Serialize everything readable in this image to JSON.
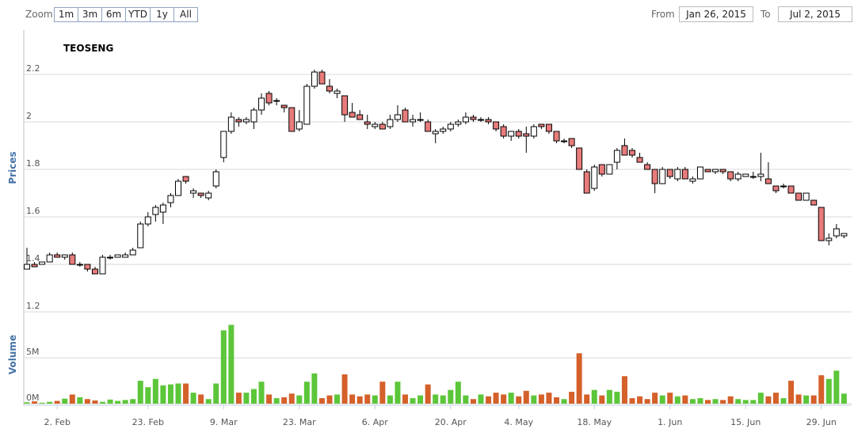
{
  "header": {
    "zoom_label": "Zoom",
    "buttons": [
      "1m",
      "3m",
      "6m",
      "YTD",
      "1y",
      "All"
    ],
    "from_label": "From",
    "from": "Jan 26, 2015",
    "to_label": "To",
    "to": "Jul 2, 2015"
  },
  "chart_data": {
    "type": "candlestick",
    "title": "TEOSENG",
    "y_label": "Prices",
    "volume_label": "Volume",
    "up_color": "#ffffff",
    "down_color": "#e87b7b",
    "volume_up_color": "#5cc63a",
    "volume_down_color": "#d4602a",
    "grid": true,
    "ylim": [
      1.2,
      2.38
    ],
    "yticks": [
      1.2,
      1.4,
      1.6,
      1.8,
      2,
      2.2
    ],
    "volume_ylim": [
      0,
      9500000
    ],
    "volume_yticks": [
      {
        "value": 0,
        "label": "0M"
      },
      {
        "value": 5000000,
        "label": "5M"
      }
    ],
    "xticks": [
      {
        "value": "2015-02-02",
        "label": "2. Feb"
      },
      {
        "value": "2015-02-23",
        "label": "23. Feb"
      },
      {
        "value": "2015-03-09",
        "label": "9. Mar"
      },
      {
        "value": "2015-03-23",
        "label": "23. Mar"
      },
      {
        "value": "2015-04-06",
        "label": "6. Apr"
      },
      {
        "value": "2015-04-20",
        "label": "20. Apr"
      },
      {
        "value": "2015-05-04",
        "label": "4. May"
      },
      {
        "value": "2015-05-18",
        "label": "18. May"
      },
      {
        "value": "2015-06-01",
        "label": "1. Jun"
      },
      {
        "value": "2015-06-15",
        "label": "15. Jun"
      },
      {
        "value": "2015-06-29",
        "label": "29. Jun"
      }
    ],
    "x": [
      "2015-01-27",
      "2015-01-28",
      "2015-01-29",
      "2015-01-30",
      "2015-02-02",
      "2015-02-04",
      "2015-02-05",
      "2015-02-06",
      "2015-02-09",
      "2015-02-10",
      "2015-02-11",
      "2015-02-12",
      "2015-02-13",
      "2015-02-16",
      "2015-02-17",
      "2015-02-18",
      "2015-02-23",
      "2015-02-24",
      "2015-02-25",
      "2015-02-26",
      "2015-02-27",
      "2015-03-02",
      "2015-03-03",
      "2015-03-04",
      "2015-03-05",
      "2015-03-06",
      "2015-03-09",
      "2015-03-10",
      "2015-03-11",
      "2015-03-12",
      "2015-03-13",
      "2015-03-16",
      "2015-03-17",
      "2015-03-18",
      "2015-03-19",
      "2015-03-20",
      "2015-03-23",
      "2015-03-24",
      "2015-03-25",
      "2015-03-26",
      "2015-03-27",
      "2015-03-30",
      "2015-03-31",
      "2015-04-01",
      "2015-04-02",
      "2015-04-03",
      "2015-04-06",
      "2015-04-07",
      "2015-04-08",
      "2015-04-09",
      "2015-04-10",
      "2015-04-13",
      "2015-04-14",
      "2015-04-15",
      "2015-04-16",
      "2015-04-17",
      "2015-04-20",
      "2015-04-21",
      "2015-04-22",
      "2015-04-23",
      "2015-04-24",
      "2015-04-27",
      "2015-04-28",
      "2015-04-29",
      "2015-04-30",
      "2015-05-04",
      "2015-05-05",
      "2015-05-06",
      "2015-05-07",
      "2015-05-08",
      "2015-05-11",
      "2015-05-12",
      "2015-05-13",
      "2015-05-14",
      "2015-05-15",
      "2015-05-18",
      "2015-05-19",
      "2015-05-20",
      "2015-05-21",
      "2015-05-22",
      "2015-05-25",
      "2015-05-26",
      "2015-05-27",
      "2015-05-28",
      "2015-05-29",
      "2015-06-01",
      "2015-06-02",
      "2015-06-03",
      "2015-06-04",
      "2015-06-05",
      "2015-06-08",
      "2015-06-09",
      "2015-06-10",
      "2015-06-11",
      "2015-06-12",
      "2015-06-15",
      "2015-06-16",
      "2015-06-17",
      "2015-06-18",
      "2015-06-19",
      "2015-06-22",
      "2015-06-23",
      "2015-06-24",
      "2015-06-25",
      "2015-06-26",
      "2015-06-29",
      "2015-06-30",
      "2015-07-01",
      "2015-07-02"
    ],
    "ohlc": [
      [
        1.38,
        1.47,
        1.38,
        1.4
      ],
      [
        1.4,
        1.41,
        1.39,
        1.39
      ],
      [
        1.4,
        1.41,
        1.4,
        1.41
      ],
      [
        1.41,
        1.45,
        1.41,
        1.44
      ],
      [
        1.44,
        1.45,
        1.43,
        1.43
      ],
      [
        1.43,
        1.44,
        1.42,
        1.44
      ],
      [
        1.44,
        1.45,
        1.4,
        1.4
      ],
      [
        1.4,
        1.41,
        1.39,
        1.4
      ],
      [
        1.4,
        1.4,
        1.37,
        1.38
      ],
      [
        1.38,
        1.39,
        1.36,
        1.36
      ],
      [
        1.36,
        1.44,
        1.36,
        1.43
      ],
      [
        1.43,
        1.44,
        1.42,
        1.43
      ],
      [
        1.43,
        1.44,
        1.43,
        1.44
      ],
      [
        1.43,
        1.45,
        1.43,
        1.44
      ],
      [
        1.44,
        1.47,
        1.44,
        1.46
      ],
      [
        1.47,
        1.58,
        1.47,
        1.57
      ],
      [
        1.57,
        1.62,
        1.56,
        1.6
      ],
      [
        1.61,
        1.65,
        1.58,
        1.64
      ],
      [
        1.62,
        1.66,
        1.57,
        1.65
      ],
      [
        1.66,
        1.7,
        1.64,
        1.69
      ],
      [
        1.69,
        1.76,
        1.69,
        1.75
      ],
      [
        1.77,
        1.77,
        1.74,
        1.75
      ],
      [
        1.7,
        1.72,
        1.68,
        1.71
      ],
      [
        1.7,
        1.7,
        1.68,
        1.69
      ],
      [
        1.68,
        1.71,
        1.67,
        1.7
      ],
      [
        1.73,
        1.8,
        1.72,
        1.79
      ],
      [
        1.85,
        1.96,
        1.83,
        1.96
      ],
      [
        1.96,
        2.04,
        1.95,
        2.02
      ],
      [
        2.01,
        2.02,
        1.98,
        2.0
      ],
      [
        2.0,
        2.02,
        1.99,
        2.01
      ],
      [
        2.0,
        2.06,
        1.97,
        2.05
      ],
      [
        2.05,
        2.12,
        2.03,
        2.1
      ],
      [
        2.12,
        2.13,
        2.07,
        2.08
      ],
      [
        2.09,
        2.1,
        2.07,
        2.09
      ],
      [
        2.07,
        2.07,
        2.04,
        2.06
      ],
      [
        2.06,
        2.06,
        1.96,
        1.96
      ],
      [
        1.97,
        2.05,
        1.96,
        2.0
      ],
      [
        1.99,
        2.16,
        1.99,
        2.15
      ],
      [
        2.15,
        2.22,
        2.14,
        2.21
      ],
      [
        2.21,
        2.22,
        2.16,
        2.16
      ],
      [
        2.15,
        2.18,
        2.12,
        2.13
      ],
      [
        2.12,
        2.14,
        2.1,
        2.13
      ],
      [
        2.11,
        2.11,
        2.0,
        2.03
      ],
      [
        2.04,
        2.08,
        2.02,
        2.02
      ],
      [
        2.03,
        2.05,
        2.01,
        2.01
      ],
      [
        2.0,
        2.03,
        1.97,
        1.99
      ],
      [
        1.98,
        2.0,
        1.97,
        1.99
      ],
      [
        1.99,
        2.0,
        1.97,
        1.97
      ],
      [
        1.98,
        2.03,
        1.97,
        2.01
      ],
      [
        2.01,
        2.07,
        2.0,
        2.03
      ],
      [
        2.05,
        2.06,
        2.0,
        2.0
      ],
      [
        2.0,
        2.03,
        1.98,
        2.01
      ],
      [
        2.01,
        2.04,
        2.0,
        2.01
      ],
      [
        2.0,
        2.01,
        1.96,
        1.96
      ],
      [
        1.95,
        1.97,
        1.91,
        1.96
      ],
      [
        1.96,
        1.98,
        1.95,
        1.97
      ],
      [
        1.97,
        2.0,
        1.96,
        1.99
      ],
      [
        1.99,
        2.01,
        1.98,
        2.0
      ],
      [
        2.0,
        2.04,
        1.99,
        2.02
      ],
      [
        2.02,
        2.03,
        2.0,
        2.01
      ],
      [
        2.01,
        2.02,
        2.0,
        2.01
      ],
      [
        2.01,
        2.02,
        1.99,
        2.0
      ],
      [
        2.0,
        2.0,
        1.96,
        1.97
      ],
      [
        1.98,
        1.99,
        1.93,
        1.94
      ],
      [
        1.94,
        1.96,
        1.92,
        1.96
      ],
      [
        1.96,
        1.97,
        1.93,
        1.94
      ],
      [
        1.95,
        1.98,
        1.87,
        1.94
      ],
      [
        1.94,
        1.99,
        1.93,
        1.98
      ],
      [
        1.99,
        1.99,
        1.97,
        1.98
      ],
      [
        1.99,
        1.99,
        1.95,
        1.96
      ],
      [
        1.96,
        1.96,
        1.91,
        1.92
      ],
      [
        1.92,
        1.93,
        1.91,
        1.92
      ],
      [
        1.93,
        1.93,
        1.89,
        1.9
      ],
      [
        1.89,
        1.89,
        1.8,
        1.8
      ],
      [
        1.79,
        1.8,
        1.7,
        1.7
      ],
      [
        1.72,
        1.82,
        1.71,
        1.81
      ],
      [
        1.82,
        1.82,
        1.77,
        1.78
      ],
      [
        1.78,
        1.82,
        1.78,
        1.82
      ],
      [
        1.83,
        1.89,
        1.8,
        1.88
      ],
      [
        1.9,
        1.93,
        1.86,
        1.86
      ],
      [
        1.88,
        1.89,
        1.85,
        1.86
      ],
      [
        1.85,
        1.87,
        1.83,
        1.83
      ],
      [
        1.82,
        1.83,
        1.8,
        1.8
      ],
      [
        1.8,
        1.8,
        1.7,
        1.74
      ],
      [
        1.74,
        1.81,
        1.74,
        1.8
      ],
      [
        1.8,
        1.8,
        1.76,
        1.77
      ],
      [
        1.76,
        1.81,
        1.75,
        1.8
      ],
      [
        1.8,
        1.81,
        1.76,
        1.76
      ],
      [
        1.75,
        1.77,
        1.74,
        1.76
      ],
      [
        1.76,
        1.81,
        1.76,
        1.81
      ],
      [
        1.8,
        1.8,
        1.79,
        1.79
      ],
      [
        1.79,
        1.8,
        1.78,
        1.8
      ],
      [
        1.8,
        1.8,
        1.78,
        1.79
      ],
      [
        1.79,
        1.79,
        1.75,
        1.76
      ],
      [
        1.76,
        1.79,
        1.75,
        1.78
      ],
      [
        1.77,
        1.78,
        1.77,
        1.78
      ],
      [
        1.77,
        1.79,
        1.76,
        1.77
      ],
      [
        1.77,
        1.87,
        1.75,
        1.78
      ],
      [
        1.76,
        1.83,
        1.74,
        1.74
      ],
      [
        1.73,
        1.73,
        1.7,
        1.71
      ],
      [
        1.73,
        1.74,
        1.72,
        1.73
      ],
      [
        1.73,
        1.73,
        1.7,
        1.7
      ],
      [
        1.7,
        1.7,
        1.67,
        1.67
      ],
      [
        1.67,
        1.7,
        1.67,
        1.7
      ],
      [
        1.67,
        1.67,
        1.65,
        1.65
      ],
      [
        1.64,
        1.64,
        1.5,
        1.5
      ],
      [
        1.5,
        1.53,
        1.48,
        1.51
      ],
      [
        1.52,
        1.57,
        1.51,
        1.55
      ],
      [
        1.52,
        1.53,
        1.51,
        1.53
      ]
    ],
    "volume": [
      150000,
      250000,
      100000,
      200000,
      300000,
      550000,
      1000000,
      700000,
      500000,
      350000,
      200000,
      450000,
      300000,
      400000,
      500000,
      2500000,
      1800000,
      2700000,
      2000000,
      2100000,
      2200000,
      2200000,
      1200000,
      1000000,
      500000,
      2200000,
      8000000,
      8600000,
      1200000,
      1200000,
      1600000,
      2400000,
      1000000,
      600000,
      700000,
      1100000,
      900000,
      2400000,
      3300000,
      600000,
      900000,
      1000000,
      3200000,
      1000000,
      800000,
      1000000,
      900000,
      2400000,
      900000,
      2400000,
      1000000,
      600000,
      900000,
      2100000,
      1000000,
      900000,
      1500000,
      2400000,
      900000,
      500000,
      1000000,
      800000,
      1200000,
      1000000,
      1200000,
      800000,
      1400000,
      900000,
      1000000,
      1200000,
      700000,
      500000,
      1300000,
      5500000,
      1000000,
      1500000,
      900000,
      1500000,
      1300000,
      3000000,
      600000,
      800000,
      500000,
      1200000,
      900000,
      1200000,
      800000,
      900000,
      500000,
      600000,
      400000,
      500000,
      400000,
      800000,
      500000,
      400000,
      400000,
      1200000,
      800000,
      1200000,
      600000,
      2500000,
      1000000,
      900000,
      900000,
      3100000,
      2700000,
      3600000,
      1100000
    ]
  }
}
